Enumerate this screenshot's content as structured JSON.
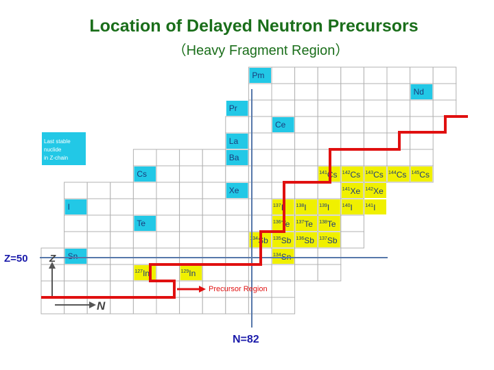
{
  "title": "Location of Delayed Neutron Precursors",
  "subtitle": "（Heavy Fragment Region）",
  "legend": {
    "text_lines": [
      "Last stable",
      "nuclide",
      "in Z-chain"
    ],
    "color": "#22c8e6"
  },
  "colors": {
    "stable": "#22c8e6",
    "precursor": "#f0f000",
    "boundary": "#e01010",
    "guide_line": "#5577aa",
    "title": "#1a6e1a"
  },
  "stable_nuclides": [
    {
      "label": "Pm"
    },
    {
      "label": "Nd"
    },
    {
      "label": "Pr"
    },
    {
      "label": "Ce"
    },
    {
      "label": "La"
    },
    {
      "label": "Ba"
    },
    {
      "label": "Cs"
    },
    {
      "label": "Xe"
    },
    {
      "label": "I"
    },
    {
      "label": "Te"
    },
    {
      "label": "Sn"
    }
  ],
  "precursors": [
    {
      "mass": "141",
      "symbol": "Cs"
    },
    {
      "mass": "142",
      "symbol": "Cs"
    },
    {
      "mass": "143",
      "symbol": "Cs"
    },
    {
      "mass": "144",
      "symbol": "Cs"
    },
    {
      "mass": "145",
      "symbol": "Cs"
    },
    {
      "mass": "141",
      "symbol": "Xe"
    },
    {
      "mass": "142",
      "symbol": "Xe"
    },
    {
      "mass": "137",
      "symbol": "I"
    },
    {
      "mass": "138",
      "symbol": "I"
    },
    {
      "mass": "139",
      "symbol": "I"
    },
    {
      "mass": "140",
      "symbol": "I"
    },
    {
      "mass": "141",
      "symbol": "I"
    },
    {
      "mass": "136",
      "symbol": "Te"
    },
    {
      "mass": "137",
      "symbol": "Te"
    },
    {
      "mass": "138",
      "symbol": "Te"
    },
    {
      "mass": "134",
      "symbol": "Sb"
    },
    {
      "mass": "135",
      "symbol": "Sb"
    },
    {
      "mass": "136",
      "symbol": "Sb"
    },
    {
      "mass": "137",
      "symbol": "Sb"
    },
    {
      "mass": "134",
      "symbol": "Sn"
    },
    {
      "mass": "127",
      "symbol": "In"
    },
    {
      "mass": "129",
      "symbol": "In"
    }
  ],
  "axes": {
    "z_line_label": "Z=50",
    "n_line_label": "N=82",
    "z_axis": "Z",
    "n_axis": "N",
    "region_label": "Precursor Region"
  }
}
